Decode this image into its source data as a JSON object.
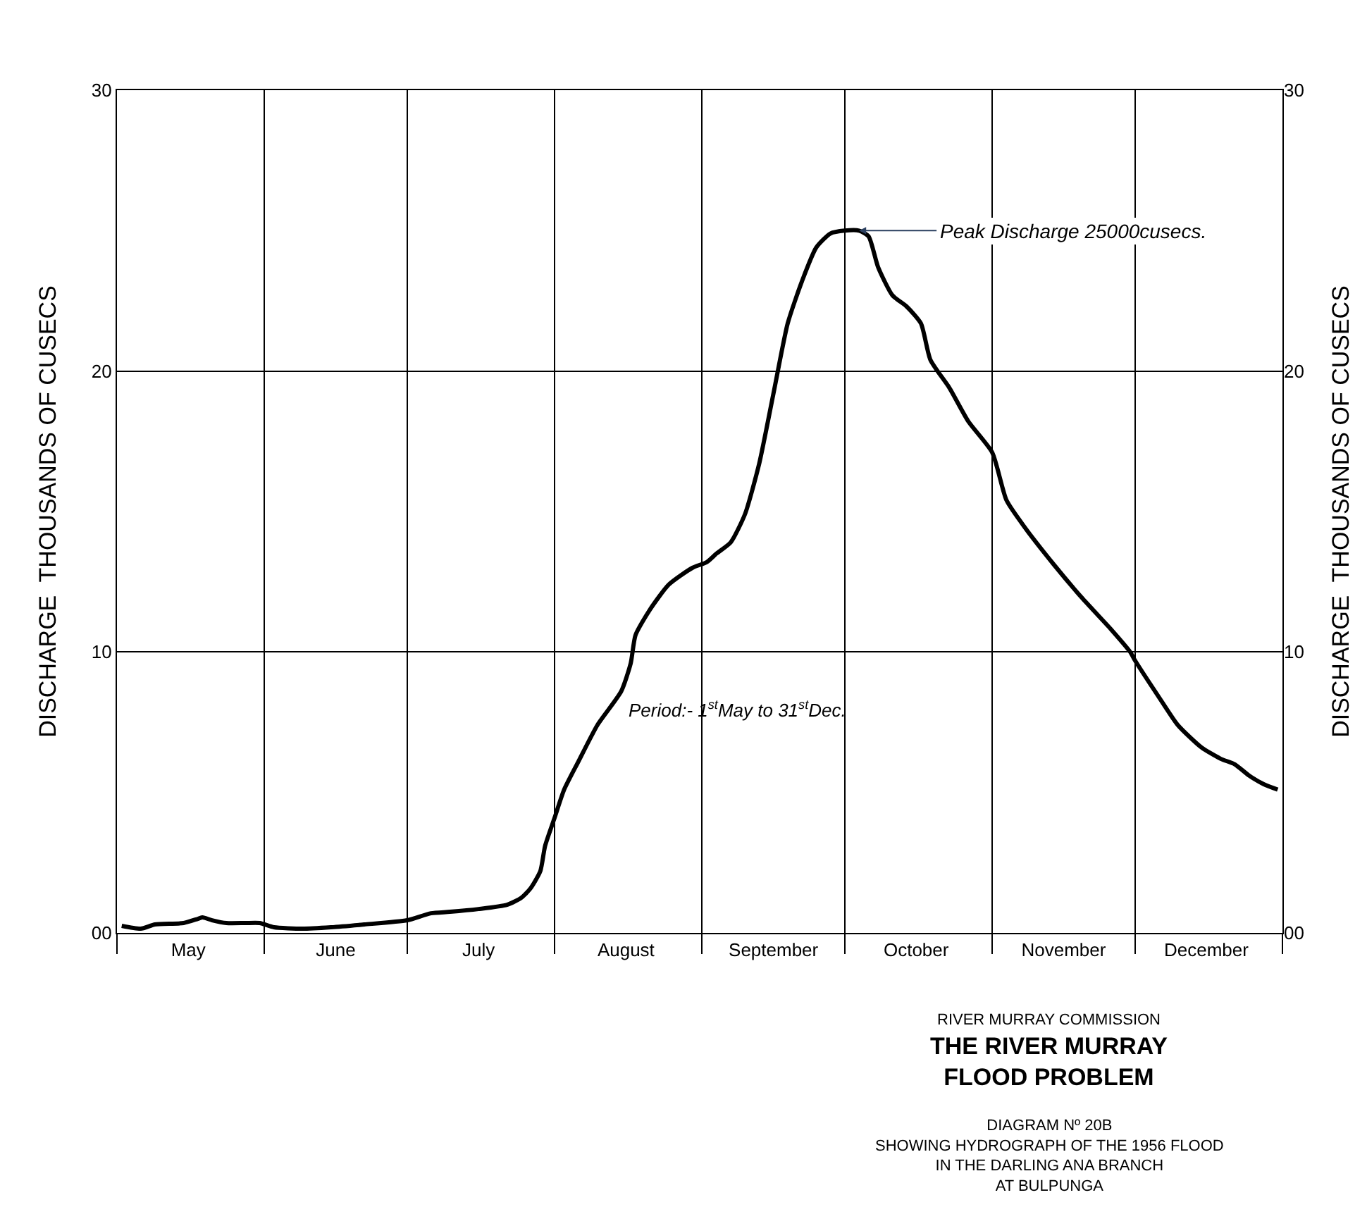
{
  "chart_data": {
    "type": "line",
    "title": "THE RIVER MURRAY\nFLOOD PROBLEM",
    "subtitle": "DIAGRAM Nº 20B\nSHOWING HYDROGRAPH OF THE 1956 FLOOD\nIN THE DARLING ANA BRANCH\nAT BULPUNGA",
    "ylabel": "DISCHARGE  THOUSANDS OF CUSECS",
    "y2label": "DISCHARGE  THOUSANDS OF CUSECS",
    "annotations": [
      "RIVER MURRAY COMMISSION",
      "Period:- 1$^{st}$May to 31$^{st}$Dec.",
      {
        "text": "Peak Discharge 25000cusecs.",
        "x": "1956-10-04",
        "y": 25
      }
    ],
    "x": [
      "1956-05-02",
      "1956-05-06",
      "1956-05-09",
      "1956-05-15",
      "1956-05-18",
      "1956-05-19",
      "1956-05-21",
      "1956-05-24",
      "1956-05-28",
      "1956-05-31",
      "1956-06-03",
      "1956-06-09",
      "1956-06-15",
      "1956-06-22",
      "1956-07-01",
      "1956-07-06",
      "1956-07-10",
      "1956-07-16",
      "1956-07-22",
      "1956-07-25",
      "1956-07-27",
      "1956-07-29",
      "1956-07-30",
      "1956-08-01",
      "1956-08-03",
      "1956-08-06",
      "1956-08-10",
      "1956-08-15",
      "1956-08-17",
      "1956-08-18",
      "1956-08-21",
      "1956-08-25",
      "1956-08-30",
      "1956-09-02",
      "1956-09-04",
      "1956-09-07",
      "1956-09-10",
      "1956-09-13",
      "1956-09-16",
      "1956-09-19",
      "1956-09-22",
      "1956-09-25",
      "1956-09-28",
      "1956-10-01",
      "1956-10-04",
      "1956-10-06",
      "1956-10-08",
      "1956-10-11",
      "1956-10-14",
      "1956-10-17",
      "1956-10-19",
      "1956-10-23",
      "1956-10-27",
      "1956-11-01",
      "1956-11-04",
      "1956-11-08",
      "1956-11-14",
      "1956-11-20",
      "1956-11-26",
      "1956-11-30",
      "1956-12-01",
      "1956-12-06",
      "1956-12-10",
      "1956-12-15",
      "1956-12-19",
      "1956-12-22",
      "1956-12-25",
      "1956-12-28",
      "1956-12-31"
    ],
    "series": [
      {
        "color": "#000000",
        "values": [
          0.25,
          0.15,
          0.3,
          0.35,
          0.5,
          0.55,
          0.45,
          0.35,
          0.35,
          0.35,
          0.2,
          0.15,
          0.2,
          0.3,
          0.45,
          0.7,
          0.75,
          0.85,
          1.0,
          1.25,
          1.6,
          2.2,
          3.1,
          4.1,
          5.1,
          6.1,
          7.4,
          8.6,
          9.6,
          10.6,
          11.5,
          12.4,
          13.0,
          13.2,
          13.5,
          13.9,
          14.9,
          16.7,
          19.2,
          21.7,
          23.2,
          24.4,
          24.9,
          25.0,
          25.0,
          24.8,
          23.7,
          22.7,
          22.3,
          21.7,
          20.4,
          19.4,
          18.2,
          17.1,
          15.4,
          14.4,
          13.1,
          11.9,
          10.8,
          10.0,
          9.7,
          8.4,
          7.4,
          6.6,
          6.2,
          6.0,
          5.6,
          5.3,
          5.1
        ]
      }
    ],
    "xlim": [
      "1956-05-01",
      "1957-01-01"
    ],
    "xticks": [
      {
        "value": "1956-05-01",
        "label": null
      },
      {
        "value": "1956-05-16",
        "label": "May"
      },
      {
        "value": "1956-06-01",
        "label": null
      },
      {
        "value": "1956-06-16",
        "label": "June"
      },
      {
        "value": "1956-07-01",
        "label": null
      },
      {
        "value": "1956-07-16",
        "label": "July"
      },
      {
        "value": "1956-08-01",
        "label": null
      },
      {
        "value": "1956-08-16",
        "label": "August"
      },
      {
        "value": "1956-09-01",
        "label": null
      },
      {
        "value": "1956-09-16",
        "label": "September"
      },
      {
        "value": "1956-10-01",
        "label": null
      },
      {
        "value": "1956-10-16",
        "label": "October"
      },
      {
        "value": "1956-11-01",
        "label": null
      },
      {
        "value": "1956-11-16",
        "label": "November"
      },
      {
        "value": "1956-12-01",
        "label": null
      },
      {
        "value": "1956-12-16",
        "label": "December"
      },
      {
        "value": "1957-01-01",
        "label": null
      }
    ],
    "ylim": [
      0,
      30
    ],
    "yticks": [
      {
        "value": 0,
        "label": "00"
      },
      10,
      20,
      30
    ],
    "y2lim": [
      0,
      30
    ],
    "y2ticks": [
      {
        "value": 0,
        "label": "00"
      },
      10,
      20,
      30
    ],
    "grid": true,
    "marker": "none",
    "line_style": "solid"
  }
}
